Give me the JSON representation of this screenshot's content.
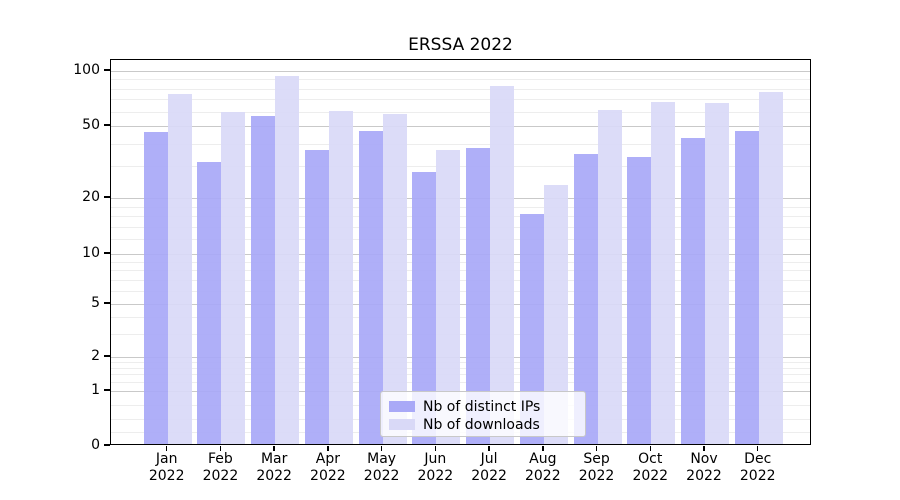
{
  "chart_data": {
    "type": "bar",
    "title": "ERSSA 2022",
    "categories": [
      "Jan",
      "Feb",
      "Mar",
      "Apr",
      "May",
      "Jun",
      "Jul",
      "Aug",
      "Sep",
      "Oct",
      "Nov",
      "Dec"
    ],
    "category_year": "2022",
    "series": [
      {
        "name": "Nb of distinct IPs",
        "color": "#a9a9f7",
        "values": [
          45,
          31,
          55,
          36,
          46,
          27,
          37,
          16,
          34,
          33,
          42,
          46
        ]
      },
      {
        "name": "Nb of downloads",
        "color": "#d9d9f7",
        "values": [
          73,
          58,
          91,
          59,
          57,
          36,
          81,
          23,
          60,
          66,
          65,
          75
        ]
      }
    ],
    "y_axis": {
      "scale": "symlog",
      "ticks": [
        100,
        50,
        20,
        10,
        5,
        2,
        1,
        0
      ],
      "range": [
        0,
        110
      ]
    },
    "grid": {
      "horizontal": true,
      "minor_values": [
        90,
        80,
        70,
        60,
        40,
        30,
        18,
        16,
        14,
        12,
        9,
        8,
        7,
        6,
        4,
        3,
        1.8,
        1.6,
        1.4,
        1.2,
        0.75,
        0.5,
        0.25
      ]
    },
    "legend": {
      "position": "bottom-center"
    }
  }
}
